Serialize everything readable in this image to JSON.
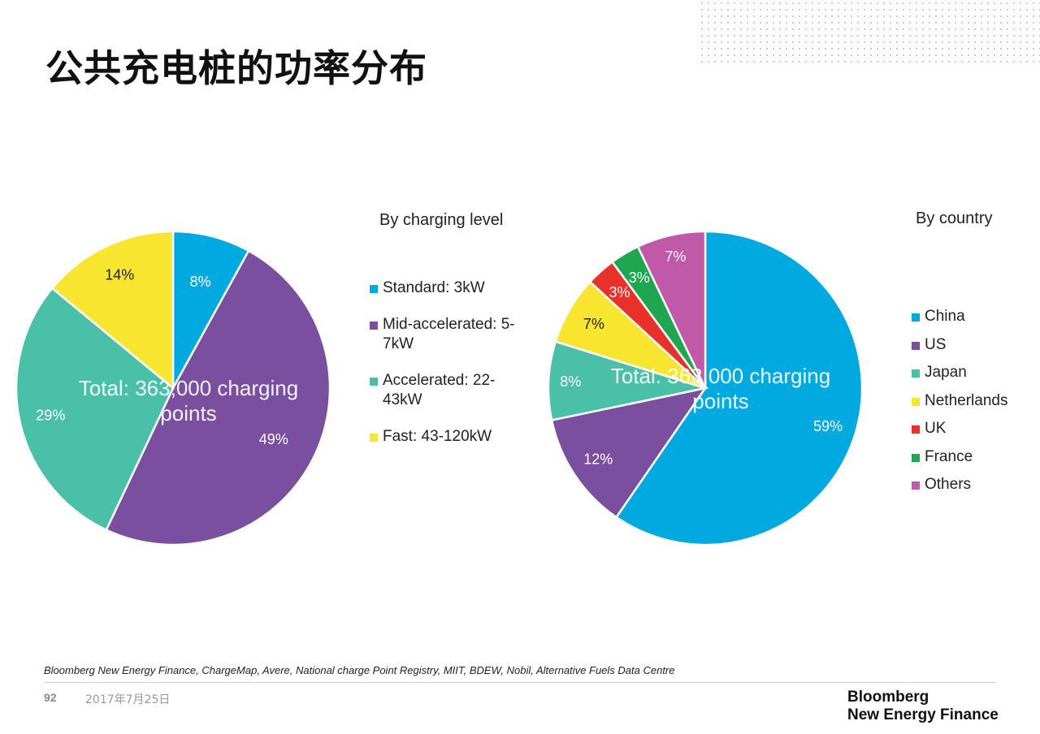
{
  "page": {
    "title": "公共充电桩的功率分布",
    "source": "Bloomberg New Energy Finance, ChargeMap, Avere, National charge Point Registry, MIIT, BDEW, Nobil, Alternative Fuels Data Centre",
    "page_number": "92",
    "date": "2017年7月25日",
    "brand_line1": "Bloomberg",
    "brand_line2": "New Energy Finance"
  },
  "chart_data": [
    {
      "type": "pie",
      "title": "By charging level",
      "center_label": "Total: 363,000 charging points",
      "categories": [
        "Standard: 3kW",
        "Mid-accelerated: 5-7kW",
        "Accelerated: 22-43kW",
        "Fast: 43-120kW"
      ],
      "values": [
        8,
        49,
        29,
        14
      ],
      "value_labels": [
        "8%",
        "49%",
        "29%",
        "14%"
      ],
      "colors": [
        "#00a9e0",
        "#7a4fa0",
        "#4bc0a8",
        "#f7e52f"
      ],
      "label_colors": [
        "#ffffff",
        "#ffffff",
        "#ffffff",
        "#222222"
      ],
      "legend_position": "right"
    },
    {
      "type": "pie",
      "title": "By country",
      "center_label": "Total: 363,000 charging points",
      "categories": [
        "China",
        "US",
        "Japan",
        "Netherlands",
        "UK",
        "France",
        "Others"
      ],
      "values": [
        59,
        12,
        8,
        7,
        3,
        3,
        7
      ],
      "value_labels": [
        "59%",
        "12%",
        "8%",
        "7%",
        "3%",
        "3%",
        "7%"
      ],
      "colors": [
        "#00a9e0",
        "#7a4fa0",
        "#4bc0a8",
        "#f7e52f",
        "#e8312a",
        "#1fa650",
        "#c05aa8"
      ],
      "label_colors": [
        "#ffffff",
        "#ffffff",
        "#ffffff",
        "#222222",
        "#ffffff",
        "#ffffff",
        "#ffffff"
      ],
      "legend_position": "right"
    }
  ]
}
